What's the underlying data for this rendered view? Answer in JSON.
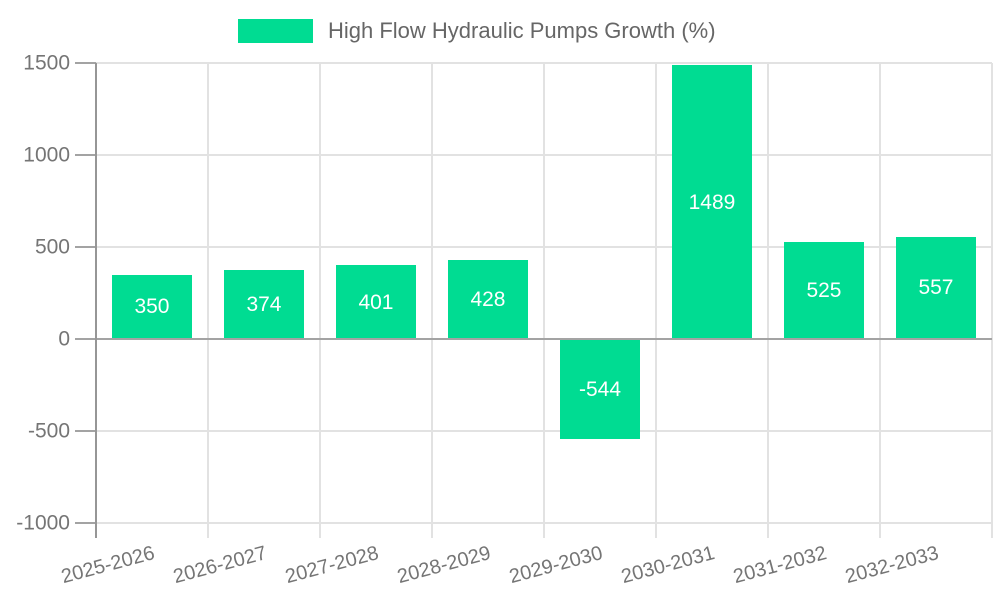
{
  "chart_data": {
    "type": "bar",
    "title": "High Flow Hydraulic Pumps Growth (%)",
    "categories": [
      "2025-2026",
      "2026-2027",
      "2027-2028",
      "2028-2029",
      "2029-2030",
      "2030-2031",
      "2031-2032",
      "2032-2033"
    ],
    "values": [
      350,
      374,
      401,
      428,
      -544,
      1489,
      525,
      557
    ],
    "xlabel": "",
    "ylabel": "",
    "ylim": [
      -1000,
      1500
    ],
    "yticks": [
      1500,
      1000,
      500,
      0,
      -500,
      -1000
    ],
    "grid": "on",
    "legend_position": "top-center",
    "bar_label_position": "inside-center",
    "colors": {
      "bar": "#00DC92",
      "bar_label": "#ffffff",
      "legend_text": "#666666",
      "axis_text": "#757575",
      "gridline": "#e2e2e2",
      "axis_line": "#969696",
      "zero_line": "#a3a3a3"
    }
  }
}
